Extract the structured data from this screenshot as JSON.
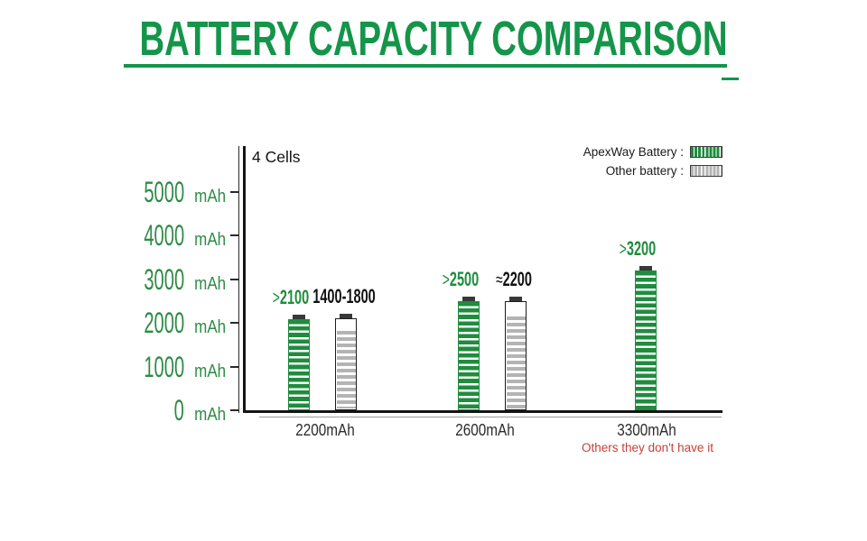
{
  "chart_data": {
    "type": "bar",
    "title": "BATTERY CAPACITY COMPARISON",
    "cells_label": "4 Cells",
    "unit": "mAh",
    "yticks": [
      5000,
      4000,
      3000,
      2000,
      1000,
      0
    ],
    "ylim_mAh": [
      0,
      6100
    ],
    "grid": false,
    "legend_position": "top-right",
    "legend": [
      {
        "label": "ApexWay Battery :",
        "color": "#1f8c3e"
      },
      {
        "label": "Other battery :",
        "color": "#b4b4b4"
      }
    ],
    "categories": [
      "2200mAh",
      "2600mAh",
      "3300mAh"
    ],
    "series": [
      {
        "name": "ApexWay Battery",
        "color": "#1f8c3e",
        "bar_labels": [
          ">2100",
          ">2500",
          ">3200"
        ],
        "values_mAh": [
          2100,
          2500,
          3200
        ],
        "drawn_bar_mAh": [
          2080,
          2490,
          3210
        ]
      },
      {
        "name": "Other battery",
        "color": "#b4b4b4",
        "bar_labels": [
          "1400-1800",
          "≈2200",
          null
        ],
        "values_mAh": [
          1800,
          2200,
          null
        ],
        "case_top_mAh": [
          2100,
          2510,
          null
        ],
        "fill_top_mAh": [
          1790,
          2120,
          null
        ]
      }
    ],
    "note": "Others they don't have it",
    "note_color": "#c4403a"
  },
  "colors": {
    "title_green": "#14954a",
    "label_green": "#2e8b45",
    "bar_green": "#1f8c3e",
    "bar_gray": "#b4b4b4",
    "cap_dark": "#383838",
    "axis_black": "#151515",
    "xlabel_dark": "#2c2c2c",
    "note_red": "#c4403a"
  }
}
